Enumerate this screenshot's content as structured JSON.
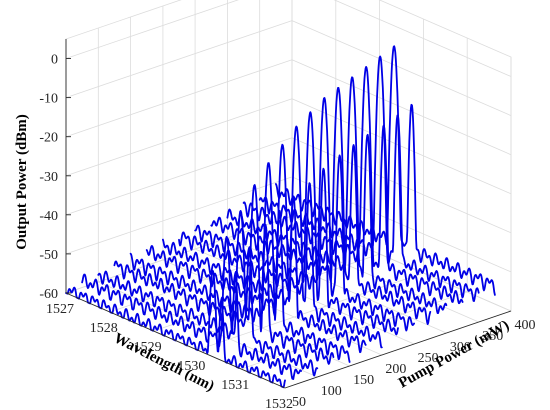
{
  "chart_data": {
    "type": "line",
    "subtype": "3d-waterfall",
    "title": "",
    "xlabel": "Wavelength (nm)",
    "ylabel": "Pump Power (mW)",
    "zlabel": "Output Power (dBm)",
    "xlim": [
      1527,
      1532
    ],
    "ylim": [
      50,
      400
    ],
    "zlim": [
      -60,
      5
    ],
    "x_ticks": [
      "1527",
      "1528",
      "1529",
      "1530",
      "1531",
      "1532"
    ],
    "y_ticks": [
      "50",
      "100",
      "150",
      "200",
      "250",
      "300",
      "350",
      "400"
    ],
    "z_ticks": [
      "0",
      "-10",
      "-20",
      "-30",
      "-40",
      "-50",
      "-60"
    ],
    "grid": true,
    "line_color": "#0000e6",
    "series": [
      {
        "pump": 50,
        "baseline": -59,
        "peaks": [
          {
            "wl": 1530.35,
            "dbm": -38
          },
          {
            "wl": 1530.55,
            "dbm": -45
          }
        ]
      },
      {
        "pump": 75,
        "baseline": -58,
        "peaks": [
          {
            "wl": 1530.3,
            "dbm": -31
          },
          {
            "wl": 1530.5,
            "dbm": -40
          }
        ]
      },
      {
        "pump": 100,
        "baseline": -58,
        "peaks": [
          {
            "wl": 1530.25,
            "dbm": -26
          },
          {
            "wl": 1530.45,
            "dbm": -35
          }
        ]
      },
      {
        "pump": 125,
        "baseline": -57,
        "peaks": [
          {
            "wl": 1530.2,
            "dbm": -21
          },
          {
            "wl": 1530.45,
            "dbm": -30
          }
        ]
      },
      {
        "pump": 150,
        "baseline": -57,
        "peaks": [
          {
            "wl": 1530.15,
            "dbm": -17
          },
          {
            "wl": 1530.4,
            "dbm": -28
          }
        ]
      },
      {
        "pump": 175,
        "baseline": -56,
        "peaks": [
          {
            "wl": 1530.1,
            "dbm": -14
          },
          {
            "wl": 1530.35,
            "dbm": -26
          }
        ]
      },
      {
        "pump": 200,
        "baseline": -56,
        "peaks": [
          {
            "wl": 1530.05,
            "dbm": -11
          },
          {
            "wl": 1530.35,
            "dbm": -24
          }
        ]
      },
      {
        "pump": 225,
        "baseline": -55,
        "peaks": [
          {
            "wl": 1530.0,
            "dbm": -9
          },
          {
            "wl": 1530.3,
            "dbm": -22
          }
        ]
      },
      {
        "pump": 250,
        "baseline": -55,
        "peaks": [
          {
            "wl": 1529.95,
            "dbm": -7
          },
          {
            "wl": 1530.3,
            "dbm": -20
          }
        ]
      },
      {
        "pump": 275,
        "baseline": -54,
        "peaks": [
          {
            "wl": 1529.9,
            "dbm": -6
          },
          {
            "wl": 1530.25,
            "dbm": -19
          }
        ]
      },
      {
        "pump": 300,
        "baseline": -54,
        "peaks": [
          {
            "wl": 1529.85,
            "dbm": -5
          },
          {
            "wl": 1530.2,
            "dbm": -18
          }
        ]
      },
      {
        "pump": 325,
        "baseline": -53,
        "peaks": [
          {
            "wl": 1529.8,
            "dbm": -4
          },
          {
            "wl": 1530.2,
            "dbm": -17
          }
        ]
      },
      {
        "pump": 350,
        "baseline": -53,
        "peaks": [
          {
            "wl": 1529.75,
            "dbm": -3
          },
          {
            "wl": 1530.15,
            "dbm": -16
          }
        ]
      },
      {
        "pump": 375,
        "baseline": -52,
        "peaks": [
          {
            "wl": 1529.7,
            "dbm": -2
          },
          {
            "wl": 1530.1,
            "dbm": -15
          }
        ]
      }
    ]
  }
}
